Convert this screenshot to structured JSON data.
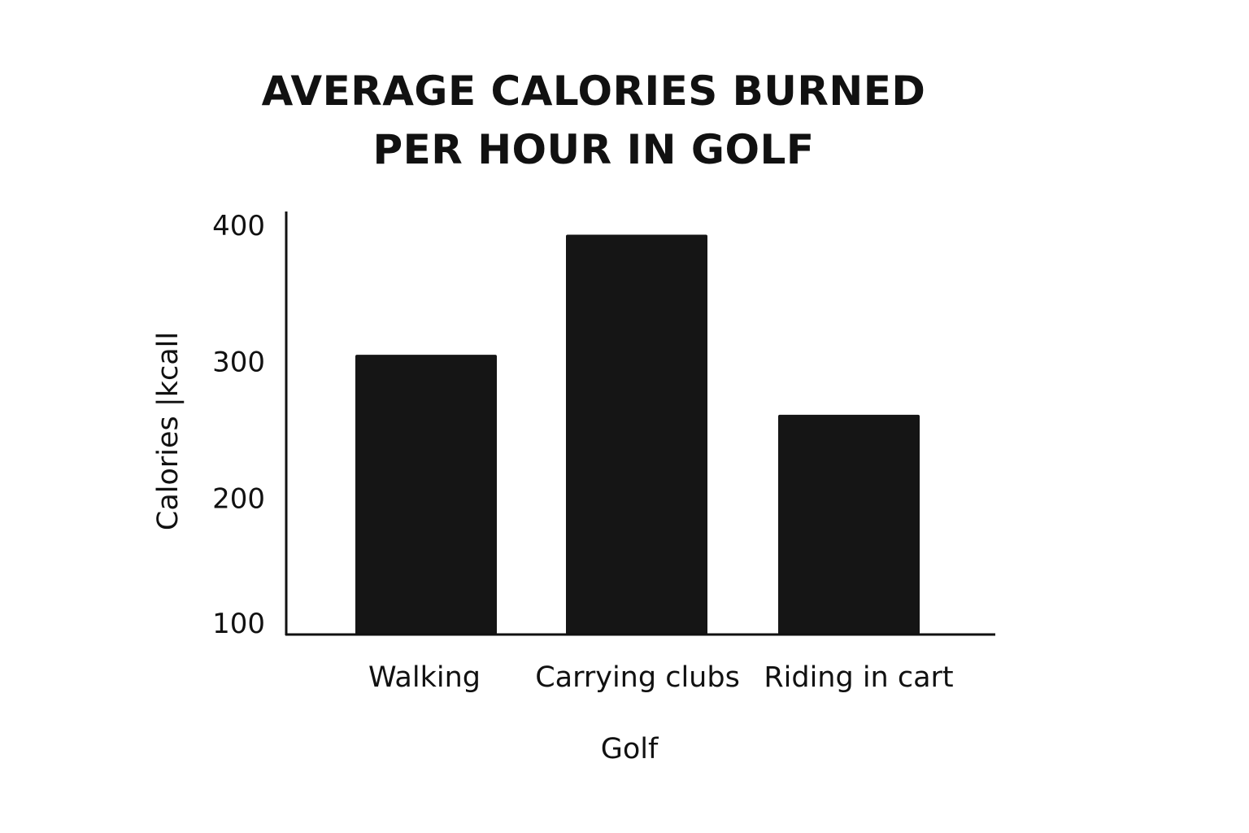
{
  "chart_data": {
    "type": "bar",
    "title_lines": [
      "AVERAGE CALORIES BURNED",
      "PER HOUR IN GOLF"
    ],
    "categories": [
      "Walking",
      "Carrying clubs",
      "Riding in cart"
    ],
    "values": [
      305,
      393,
      261
    ],
    "xlabel": "Golf",
    "ylabel": "Calories |kcall",
    "yticks": [
      100,
      200,
      300,
      400
    ],
    "ylim": [
      100,
      410
    ],
    "grid": false,
    "bar_color": "#151515",
    "axis_color": "#111111"
  }
}
